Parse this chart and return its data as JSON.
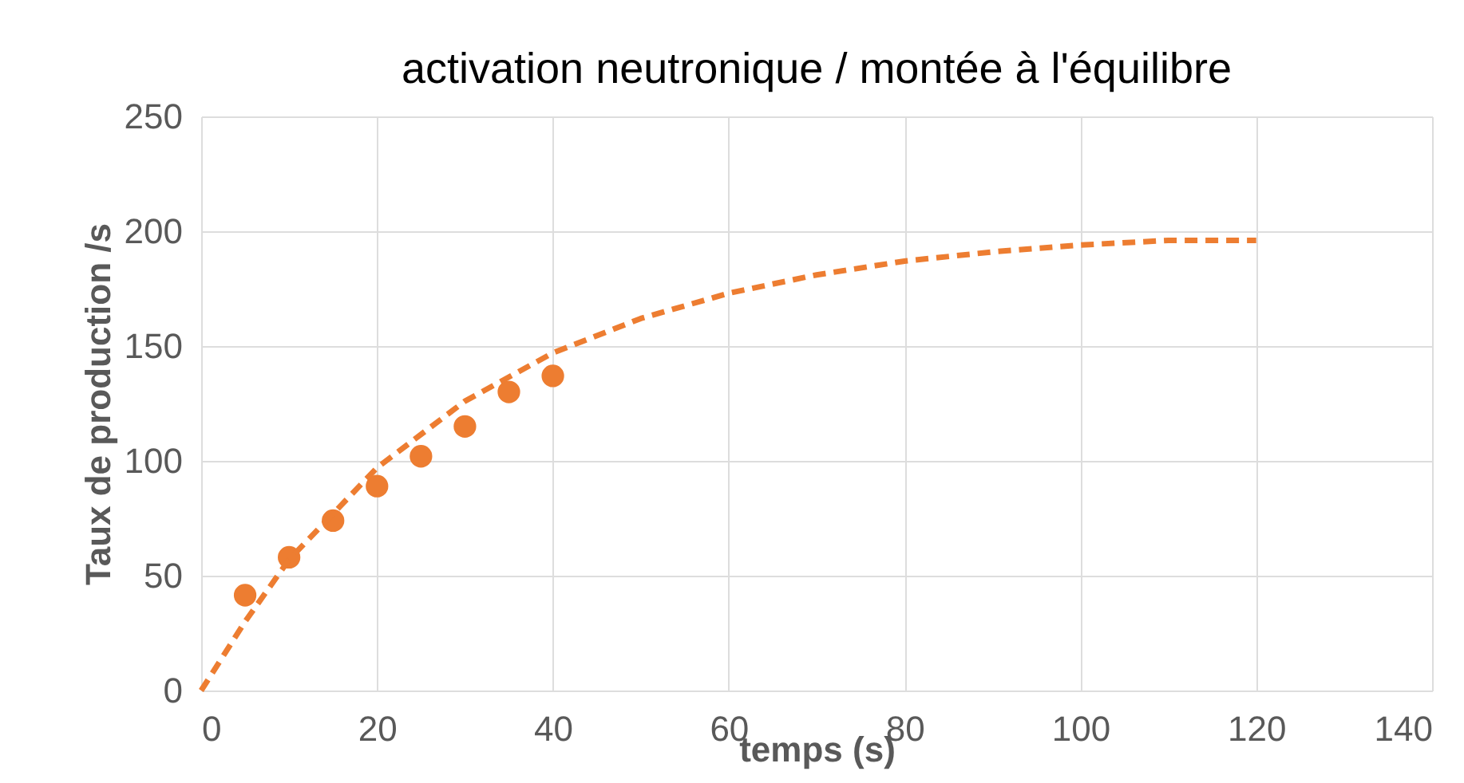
{
  "chart_data": {
    "type": "scatter",
    "title": "activation neutronique / montée à l'équilibre",
    "xlabel": "temps (s)",
    "ylabel": "Taux de production /s",
    "xlim": [
      0,
      140
    ],
    "xticks": [
      0,
      20,
      40,
      60,
      80,
      100,
      120,
      140
    ],
    "ylim": [
      0,
      250
    ],
    "yticks": [
      0,
      50,
      100,
      150,
      200,
      250
    ],
    "grid": true,
    "series": [
      {
        "color": "#ed7d31",
        "marker": "circle",
        "x": [
          5,
          10,
          15,
          20,
          25,
          30,
          35,
          40
        ],
        "values": [
          41.5,
          58,
          74,
          89,
          102,
          115,
          130,
          137
        ]
      },
      {
        "type": "line",
        "color": "#ed7d31",
        "line_style": "dashed",
        "marker": "none",
        "x": [
          0,
          5,
          10,
          20,
          30,
          40,
          50,
          60,
          70,
          80,
          90,
          100,
          110,
          120
        ],
        "values": [
          0,
          30,
          57,
          97,
          126,
          147,
          162,
          173,
          181,
          187,
          191,
          194,
          196,
          196
        ]
      }
    ]
  }
}
